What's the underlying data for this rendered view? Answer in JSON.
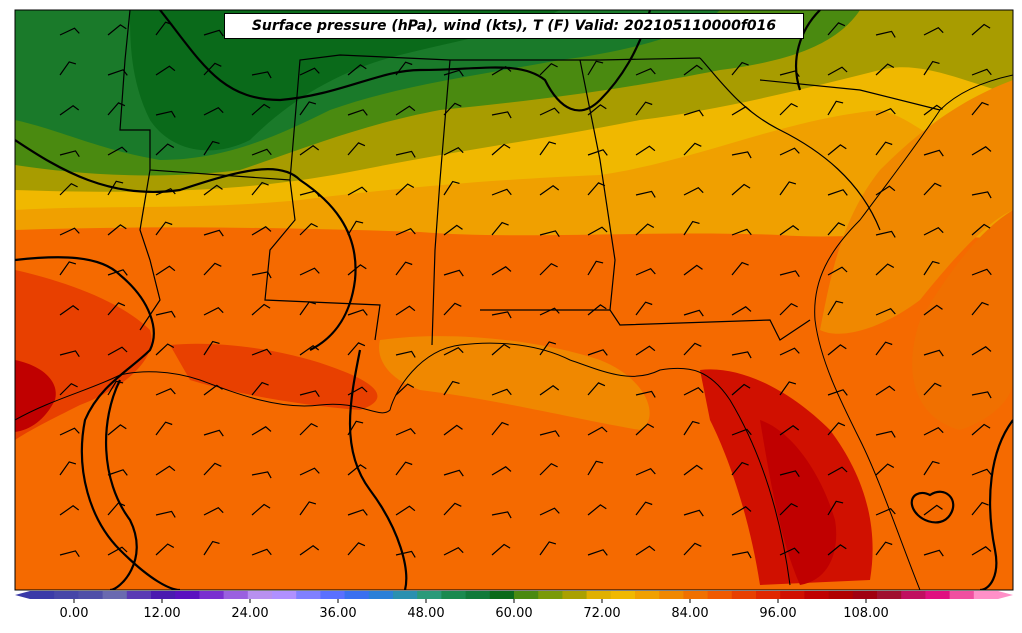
{
  "title": "Surface pressure (hPa), wind (kts), T (F) Valid: 202105110000f016",
  "colorbar": {
    "tick_labels": [
      "0.00",
      "12.00",
      "24.00",
      "36.00",
      "48.00",
      "60.00",
      "72.00",
      "84.00",
      "96.00",
      "108.00"
    ],
    "colors": [
      "#3a3aa8",
      "#4646a8",
      "#5050a8",
      "#6a6ab0",
      "#5a3ab4",
      "#4a1ab0",
      "#5a10c0",
      "#7a30d0",
      "#9a60e0",
      "#b890f0",
      "#b090ff",
      "#8080ff",
      "#5a70ff",
      "#3a70f0",
      "#2a80d8",
      "#2a90b0",
      "#2a9a7a",
      "#1a8a50",
      "#107a3a",
      "#0a6a1a",
      "#4a8a10",
      "#7a9a08",
      "#aaa000",
      "#e0b000",
      "#f0b800",
      "#f0a000",
      "#f08800",
      "#f07000",
      "#f05a00",
      "#e84000",
      "#e02800",
      "#d01000",
      "#c00000",
      "#b00000",
      "#a00010",
      "#a01030",
      "#c01060",
      "#e01080",
      "#f050a0",
      "#ff90c8"
    ]
  },
  "legend": {
    "fields": [
      "Surface pressure (hPa)",
      "wind (kts)",
      "T (F)"
    ]
  },
  "valid_time": "202105110000f016"
}
